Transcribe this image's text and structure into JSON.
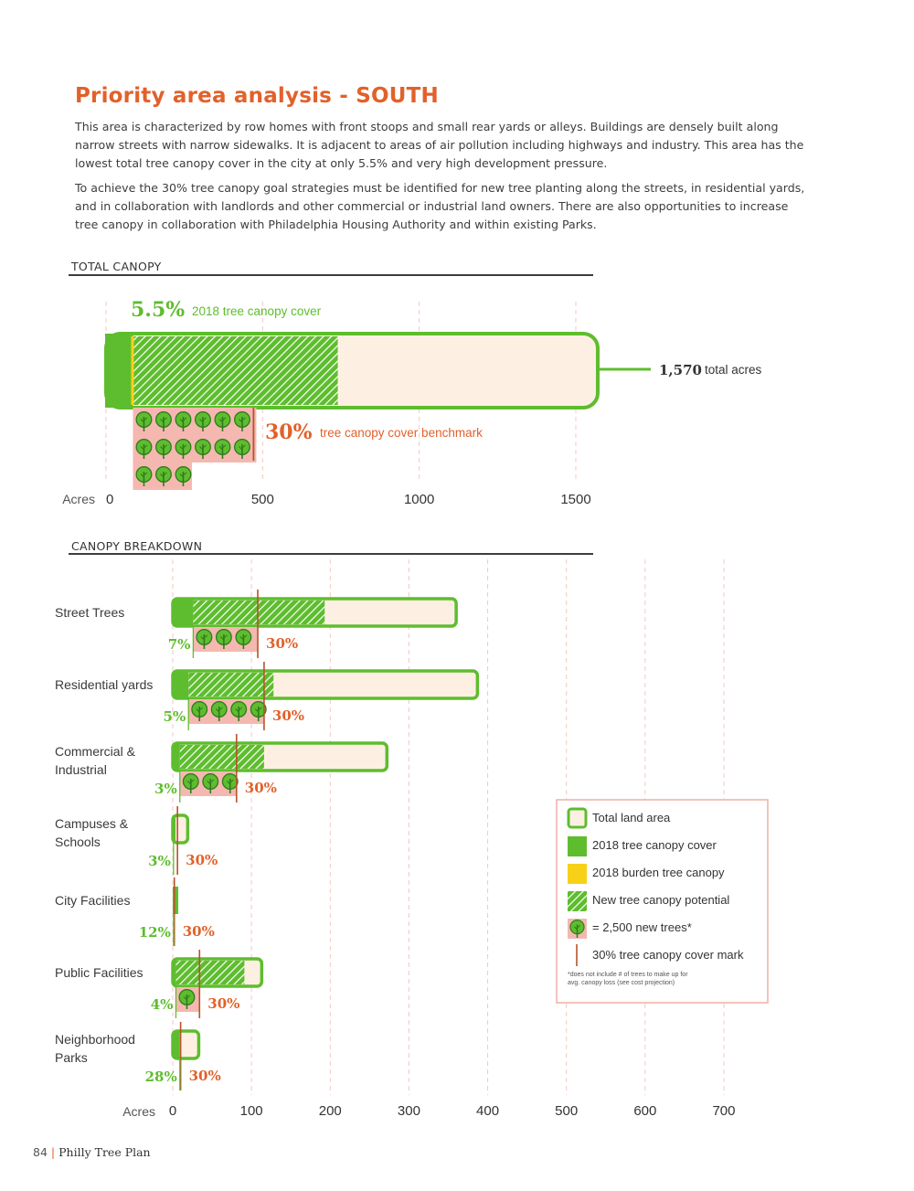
{
  "page": {
    "title": "Priority area analysis - SOUTH",
    "paragraph1": "This area is characterized by row homes with front stoops and small rear yards or alleys. Buildings are densely built along narrow streets with narrow sidewalks. It is adjacent to areas of air pollution including highways and industry. This area has the lowest total tree canopy cover in the city at only 5.5% and very high development pressure.",
    "paragraph2": "To achieve the 30% tree canopy goal strategies must be identified for new tree planting along the streets, in residential yards, and in collaboration with landlords and other commercial or industrial land owners. There are also opportunities to increase tree canopy in collaboration with Philadelphia Housing Authority and within existing Parks.",
    "footer_page": "84",
    "footer_sep": "|",
    "footer_title": "Philly Tree Plan"
  },
  "colors": {
    "orange": "#e2612a",
    "green": "#5ebd2e",
    "cream": "#fdf0e3",
    "pink": "#f4b8b0",
    "yellow": "#f7d117",
    "tree_dark": "#2f7a1e",
    "hatch": "#ffffff"
  },
  "chart_data": [
    {
      "type": "bar",
      "section_label": "TOTAL CANOPY",
      "axis_label": "Acres",
      "xlim": [
        0,
        1500
      ],
      "ticks": [
        0,
        500,
        1000,
        1500
      ],
      "total_acres": 1570,
      "existing_acres": 86,
      "burden_acres": 4,
      "potential_end_acres": 740,
      "benchmark_acres": 471,
      "trees_full_rows": 2,
      "trees_last_row": 3,
      "trees_per_row": 6,
      "canopy_pct_label": "5.5%",
      "canopy_text": "2018 tree canopy cover",
      "benchmark_pct_label": "30%",
      "benchmark_text": "tree canopy cover benchmark",
      "total_value_label": "1,570",
      "total_text": "total acres"
    },
    {
      "type": "bar",
      "section_label": "CANOPY BREAKDOWN",
      "axis_label": "Acres",
      "xlim": [
        0,
        700
      ],
      "ticks": [
        0,
        100,
        200,
        300,
        400,
        500,
        600,
        700
      ],
      "categories": [
        {
          "name_lines": [
            "Street Trees"
          ],
          "total": 360,
          "existing": 26,
          "potential_end": 193,
          "benchmark": 108,
          "trees": 3,
          "pct": "7%",
          "bench_label": "30%"
        },
        {
          "name_lines": [
            "Residential yards"
          ],
          "total": 387,
          "existing": 20,
          "potential_end": 128,
          "benchmark": 116,
          "trees": 4,
          "pct": "5%",
          "bench_label": "30%"
        },
        {
          "name_lines": [
            "Commercial &",
            "Industrial"
          ],
          "total": 272,
          "existing": 9,
          "potential_end": 116,
          "benchmark": 81,
          "trees": 3,
          "pct": "3%",
          "bench_label": "30%"
        },
        {
          "name_lines": [
            "Campuses &",
            "Schools"
          ],
          "total": 19,
          "existing": 1,
          "potential_end": 0,
          "benchmark": 6,
          "trees": 0,
          "pct": "3%",
          "bench_label": "30%"
        },
        {
          "name_lines": [
            "City Facilities"
          ],
          "total": 7,
          "existing": 1,
          "potential_end": 0,
          "benchmark": 2,
          "trees": 0,
          "pct": "12%",
          "bench_label": "30%"
        },
        {
          "name_lines": [
            "Public Facilities"
          ],
          "total": 113,
          "existing": 4,
          "potential_end": 91,
          "benchmark": 34,
          "trees": 1,
          "pct": "4%",
          "bench_label": "30%"
        },
        {
          "name_lines": [
            "Neighborhood",
            "Parks"
          ],
          "total": 33,
          "existing": 9,
          "potential_end": 0,
          "benchmark": 10,
          "trees": 0,
          "pct": "28%",
          "bench_label": "30%"
        }
      ]
    }
  ],
  "legend": {
    "items": [
      {
        "key": "total",
        "label": "Total land area"
      },
      {
        "key": "existing",
        "label": "2018 tree canopy cover"
      },
      {
        "key": "burden",
        "label": "2018 burden tree canopy"
      },
      {
        "key": "potential",
        "label": "New tree canopy potential"
      },
      {
        "key": "trees",
        "label": "= 2,500 new trees*"
      },
      {
        "key": "mark",
        "label": "30% tree canopy cover mark"
      }
    ],
    "footnote_line1": "*does not include # of trees to make up for",
    "footnote_line2": "avg. canopy loss (see cost projection)"
  }
}
